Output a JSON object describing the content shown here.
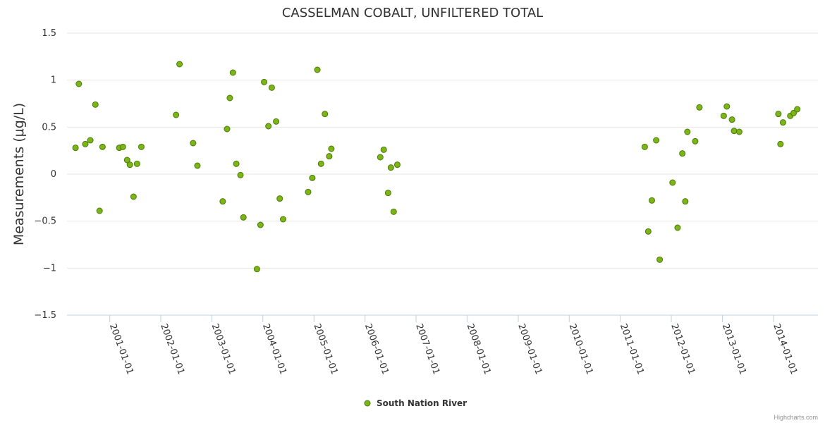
{
  "chart_data": {
    "type": "scatter",
    "title": "CASSELMAN COBALT, UNFILTERED TOTAL",
    "ylabel": "Measurements (μg/L)",
    "xlabel": "",
    "ylim": [
      -1.5,
      1.5
    ],
    "yticks": [
      1.5,
      1,
      0.5,
      0,
      -0.5,
      -1,
      -1.5
    ],
    "ytick_labels": [
      "1.5",
      "1",
      "0.5",
      "0",
      "−0.5",
      "−1",
      "−1.5"
    ],
    "xlim": [
      "2000-03-01",
      "2014-11-15"
    ],
    "xticks": [
      "2001-01-01",
      "2002-01-01",
      "2003-01-01",
      "2004-01-01",
      "2005-01-01",
      "2006-01-01",
      "2007-01-01",
      "2008-01-01",
      "2009-01-01",
      "2010-01-01",
      "2011-01-01",
      "2012-01-01",
      "2013-01-01",
      "2014-01-01"
    ],
    "grid": true,
    "legend_position": "bottom-center",
    "color": "#7cb518",
    "marker_outline": "#4a7a06",
    "series": [
      {
        "name": "South Nation River",
        "points": [
          [
            "2000-05-01",
            0.28
          ],
          [
            "2000-05-25",
            0.96
          ],
          [
            "2000-07-10",
            0.32
          ],
          [
            "2000-08-15",
            0.36
          ],
          [
            "2000-09-20",
            0.74
          ],
          [
            "2000-10-20",
            -0.39
          ],
          [
            "2000-11-10",
            0.29
          ],
          [
            "2001-03-10",
            0.28
          ],
          [
            "2001-04-05",
            0.29
          ],
          [
            "2001-05-05",
            0.15
          ],
          [
            "2001-05-25",
            0.1
          ],
          [
            "2001-06-20",
            -0.24
          ],
          [
            "2001-07-15",
            0.11
          ],
          [
            "2001-08-15",
            0.29
          ],
          [
            "2002-04-20",
            0.63
          ],
          [
            "2002-05-15",
            1.17
          ],
          [
            "2002-08-20",
            0.33
          ],
          [
            "2002-09-20",
            0.09
          ],
          [
            "2003-03-20",
            -0.29
          ],
          [
            "2003-04-20",
            0.48
          ],
          [
            "2003-05-10",
            0.81
          ],
          [
            "2003-06-01",
            1.08
          ],
          [
            "2003-06-25",
            0.11
          ],
          [
            "2003-07-25",
            -0.01
          ],
          [
            "2003-08-15",
            -0.46
          ],
          [
            "2003-11-20",
            -1.01
          ],
          [
            "2003-12-15",
            -0.54
          ],
          [
            "2004-01-10",
            0.98
          ],
          [
            "2004-02-10",
            0.51
          ],
          [
            "2004-03-05",
            0.92
          ],
          [
            "2004-04-05",
            0.56
          ],
          [
            "2004-05-01",
            -0.26
          ],
          [
            "2004-05-25",
            -0.48
          ],
          [
            "2004-11-20",
            -0.19
          ],
          [
            "2004-12-20",
            -0.04
          ],
          [
            "2005-01-25",
            1.11
          ],
          [
            "2005-02-20",
            0.11
          ],
          [
            "2005-03-20",
            0.64
          ],
          [
            "2005-04-20",
            0.19
          ],
          [
            "2005-05-05",
            0.27
          ],
          [
            "2006-04-20",
            0.18
          ],
          [
            "2006-05-15",
            0.26
          ],
          [
            "2006-06-15",
            -0.2
          ],
          [
            "2006-07-05",
            0.07
          ],
          [
            "2006-07-25",
            -0.4
          ],
          [
            "2006-08-20",
            0.1
          ],
          [
            "2011-06-25",
            0.29
          ],
          [
            "2011-07-20",
            -0.61
          ],
          [
            "2011-08-15",
            -0.28
          ],
          [
            "2011-09-15",
            0.36
          ],
          [
            "2011-10-10",
            -0.91
          ],
          [
            "2012-01-10",
            -0.09
          ],
          [
            "2012-02-15",
            -0.57
          ],
          [
            "2012-03-20",
            0.22
          ],
          [
            "2012-04-10",
            -0.29
          ],
          [
            "2012-04-25",
            0.45
          ],
          [
            "2012-06-20",
            0.35
          ],
          [
            "2012-07-20",
            0.71
          ],
          [
            "2013-01-10",
            0.62
          ],
          [
            "2013-02-01",
            0.72
          ],
          [
            "2013-03-10",
            0.58
          ],
          [
            "2013-03-25",
            0.46
          ],
          [
            "2013-05-01",
            0.45
          ],
          [
            "2014-02-05",
            0.64
          ],
          [
            "2014-02-20",
            0.32
          ],
          [
            "2014-03-10",
            0.55
          ],
          [
            "2014-05-01",
            0.62
          ],
          [
            "2014-05-25",
            0.65
          ],
          [
            "2014-06-20",
            0.69
          ]
        ]
      }
    ]
  },
  "legend": {
    "label": "South Nation River"
  },
  "credits": "Highcharts.com"
}
